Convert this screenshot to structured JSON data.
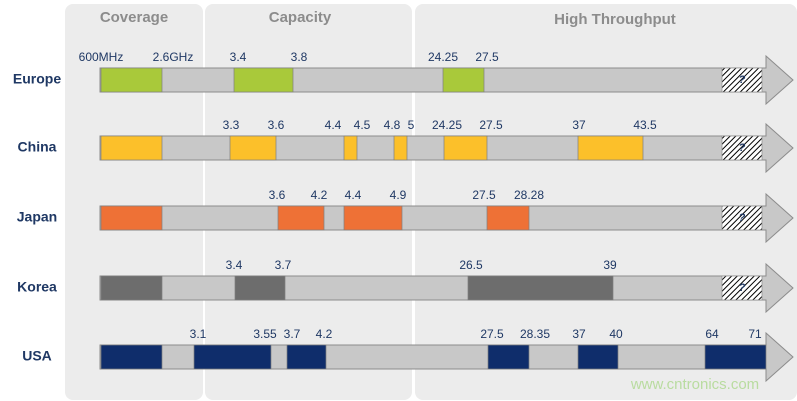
{
  "header": {
    "columns": [
      "Coverage",
      "Capacity",
      "High Throughput"
    ]
  },
  "rows": [
    {
      "country": "Europe",
      "labels": [
        "600MHz",
        "2.6GHz",
        "3.4",
        "3.8",
        "24.25",
        "27.5"
      ],
      "question": "?"
    },
    {
      "country": "China",
      "labels": [
        "3.3",
        "3.6",
        "4.4",
        "4.5",
        "4.8",
        "5",
        "24.25",
        "27.5",
        "37",
        "43.5"
      ],
      "question": "?"
    },
    {
      "country": "Japan",
      "labels": [
        "3.6",
        "4.2",
        "4.4",
        "4.9",
        "27.5",
        "28.28"
      ],
      "question": "?"
    },
    {
      "country": "Korea",
      "labels": [
        "3.4",
        "3.7",
        "26.5",
        "39"
      ],
      "question": "?"
    },
    {
      "country": "USA",
      "labels": [
        "3.1",
        "3.55",
        "3.7",
        "4.2",
        "27.5",
        "28.35",
        "37",
        "40",
        "64",
        "71"
      ]
    }
  ],
  "watermark": "www.cntronics.com"
}
